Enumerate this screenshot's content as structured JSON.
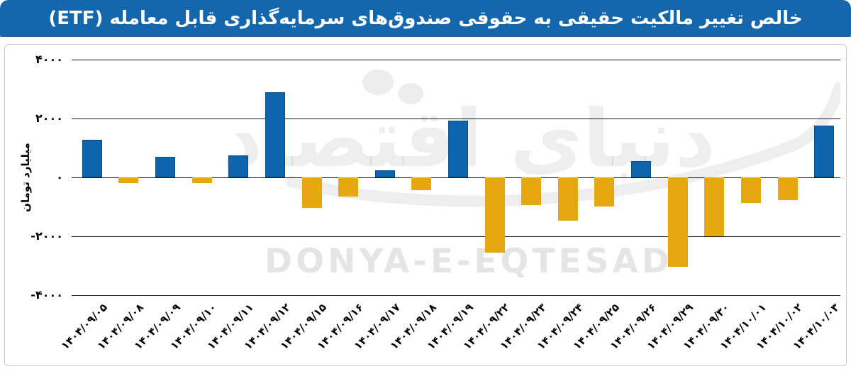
{
  "header": {
    "title": "خالص تغییر مالکیت حقیقی به حقوقی صندوق‌های سرمایه‌گذاری قابل معامله (ETF)",
    "background_color": "#1467AD",
    "text_color": "#FFFFFF"
  },
  "watermark": {
    "persian": "دنیای اقتصاد",
    "english": "DONYA-E-EQTESAD",
    "color": "#000000",
    "opacity": 0.08
  },
  "chart_data": {
    "type": "bar",
    "title": "خالص تغییر مالکیت حقیقی به حقوقی صندوق‌های سرمایه‌گذاری قابل معامله (ETF)",
    "xlabel": "",
    "ylabel": "میلیارد تومان",
    "ylim": [
      -4000,
      4000
    ],
    "grid": true,
    "legend": false,
    "ytick_values": [
      4000,
      2000,
      0,
      -2000,
      -4000
    ],
    "ytick_labels": [
      "۴۰۰۰",
      "۲۰۰۰",
      "۰",
      "-۲۰۰۰",
      "-۴۰۰۰"
    ],
    "categories": [
      "۱۴۰۴/۰۹/۰۵",
      "۱۴۰۴/۰۹/۰۸",
      "۱۴۰۴/۰۹/۰۹",
      "۱۴۰۴/۰۹/۱۰",
      "۱۴۰۴/۰۹/۱۱",
      "۱۴۰۴/۰۹/۱۲",
      "۱۴۰۴/۰۹/۱۵",
      "۱۴۰۴/۰۹/۱۶",
      "۱۴۰۴/۰۹/۱۷",
      "۱۴۰۴/۰۹/۱۸",
      "۱۴۰۴/۰۹/۱۹",
      "۱۴۰۴/۰۹/۲۲",
      "۱۴۰۴/۰۹/۲۳",
      "۱۴۰۴/۰۹/۲۴",
      "۱۴۰۴/۰۹/۲۵",
      "۱۴۰۴/۰۹/۲۶",
      "۱۴۰۴/۰۹/۲۹",
      "۱۴۰۴/۰۹/۳۰",
      "۱۴۰۴/۱۰/۰۱",
      "۱۴۰۴/۱۰/۰۲",
      "۱۴۰۴/۱۰/۰۳"
    ],
    "values": [
      1280,
      -190,
      700,
      -200,
      755,
      2890,
      -1040,
      -640,
      240,
      -440,
      1920,
      -2550,
      -930,
      -1470,
      -990,
      550,
      -3030,
      -2000,
      -870,
      -760,
      1750
    ],
    "positive_color": "#0F64AE",
    "positive_border_color": "#0A4C86",
    "negative_color": "#E7A711",
    "gridline_color": "#1B1B1B"
  }
}
